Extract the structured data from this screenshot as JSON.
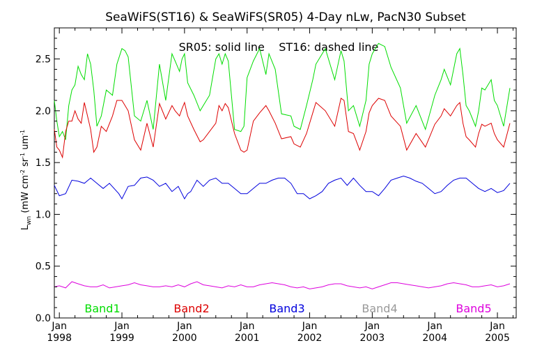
{
  "chart_data": {
    "type": "line",
    "title": "SeaWiFS(ST16) & SeaWiFS(SR05) 4-Day nLw, PacN30 Subset",
    "annotation": "SR05: solid line    ST16: dashed line",
    "ylabel_main": "L",
    "ylabel_sub": "wn",
    "ylabel_units": "(mW cm",
    "ylabel_units_rest": " sr",
    "ylabel_units_end": " um",
    "ylabel_sup": "-2",
    "ylabel_sup2": "-1",
    "ylabel_sup3": "-1",
    "xlim": [
      1997.92,
      2005.3
    ],
    "ylim": [
      0.0,
      2.8
    ],
    "yticks": [
      0.0,
      0.5,
      1.0,
      1.5,
      2.0,
      2.5
    ],
    "ytick_labels": [
      "0.0",
      "0.5",
      "1.0",
      "1.5",
      "2.0",
      "2.5"
    ],
    "xticks": [
      1998.0,
      1999.0,
      2000.0,
      2001.0,
      2002.0,
      2003.0,
      2004.0,
      2005.0
    ],
    "xtick_month": [
      "Jan",
      "Jan",
      "Jan",
      "Jan",
      "Jan",
      "Jan",
      "Jan",
      "Jan"
    ],
    "xtick_year": [
      "1998",
      "1999",
      "2000",
      "2001",
      "2002",
      "2003",
      "2004",
      "2005"
    ],
    "grid": false,
    "legend_placement": "bottom",
    "series": [
      {
        "name": "Band1",
        "color": "#00dd00",
        "x": [
          1997.92,
          1997.96,
          1998.0,
          1998.05,
          1998.1,
          1998.15,
          1998.2,
          1998.25,
          1998.3,
          1998.35,
          1998.4,
          1998.45,
          1998.5,
          1998.55,
          1998.6,
          1998.67,
          1998.75,
          1998.85,
          1998.92,
          1999.0,
          1999.05,
          1999.1,
          1999.2,
          1999.3,
          1999.4,
          1999.5,
          1999.6,
          1999.7,
          1999.8,
          1999.85,
          1999.92,
          1999.96,
          2000.0,
          2000.05,
          2000.15,
          2000.25,
          2000.3,
          2000.4,
          2000.5,
          2000.55,
          2000.6,
          2000.65,
          2000.7,
          2000.8,
          2000.9,
          2000.95,
          2001.0,
          2001.1,
          2001.2,
          2001.3,
          2001.35,
          2001.45,
          2001.55,
          2001.7,
          2001.75,
          2001.85,
          2001.95,
          2002.05,
          2002.1,
          2002.25,
          2002.4,
          2002.5,
          2002.55,
          2002.62,
          2002.7,
          2002.8,
          2002.9,
          2002.95,
          2003.0,
          2003.1,
          2003.2,
          2003.3,
          2003.45,
          2003.55,
          2003.7,
          2003.85,
          2004.0,
          2004.1,
          2004.15,
          2004.25,
          2004.35,
          2004.4,
          2004.45,
          2004.5,
          2004.55,
          2004.65,
          2004.7,
          2004.75,
          2004.8,
          2004.9,
          2004.95,
          2005.0,
          2005.1,
          2005.2
        ],
        "values": [
          2.1,
          1.9,
          1.75,
          1.8,
          1.72,
          2.05,
          2.2,
          2.25,
          2.43,
          2.35,
          2.3,
          2.55,
          2.45,
          2.2,
          1.85,
          1.95,
          2.2,
          2.15,
          2.45,
          2.6,
          2.58,
          2.52,
          1.95,
          1.9,
          2.1,
          1.82,
          2.45,
          2.1,
          2.55,
          2.48,
          2.38,
          2.5,
          2.55,
          2.27,
          2.15,
          2.0,
          2.05,
          2.15,
          2.5,
          2.55,
          2.45,
          2.55,
          2.48,
          1.82,
          1.8,
          1.85,
          2.32,
          2.48,
          2.6,
          2.35,
          2.55,
          2.4,
          1.97,
          1.95,
          1.85,
          1.82,
          2.05,
          2.3,
          2.45,
          2.6,
          2.3,
          2.58,
          2.48,
          2.0,
          2.05,
          1.85,
          2.1,
          2.45,
          2.55,
          2.65,
          2.62,
          2.42,
          2.22,
          1.88,
          2.05,
          1.82,
          2.15,
          2.3,
          2.4,
          2.25,
          2.55,
          2.6,
          2.35,
          2.05,
          2.0,
          1.85,
          2.0,
          2.22,
          2.2,
          2.3,
          2.1,
          2.05,
          1.85,
          2.22
        ],
        "dashed": false
      },
      {
        "name": "Band2",
        "color": "#dd0000",
        "x": [
          1997.92,
          1997.96,
          1998.0,
          1998.05,
          1998.1,
          1998.15,
          1998.2,
          1998.25,
          1998.3,
          1998.35,
          1998.4,
          1998.45,
          1998.5,
          1998.55,
          1998.6,
          1998.67,
          1998.75,
          1998.85,
          1998.92,
          1999.0,
          1999.05,
          1999.1,
          1999.2,
          1999.3,
          1999.4,
          1999.5,
          1999.6,
          1999.7,
          1999.8,
          1999.85,
          1999.92,
          1999.96,
          2000.0,
          2000.05,
          2000.15,
          2000.25,
          2000.3,
          2000.4,
          2000.5,
          2000.55,
          2000.6,
          2000.65,
          2000.7,
          2000.8,
          2000.9,
          2000.95,
          2001.0,
          2001.1,
          2001.2,
          2001.3,
          2001.35,
          2001.45,
          2001.55,
          2001.7,
          2001.75,
          2001.85,
          2001.95,
          2002.05,
          2002.1,
          2002.25,
          2002.4,
          2002.5,
          2002.55,
          2002.62,
          2002.7,
          2002.8,
          2002.9,
          2002.95,
          2003.0,
          2003.1,
          2003.2,
          2003.3,
          2003.45,
          2003.55,
          2003.7,
          2003.85,
          2004.0,
          2004.1,
          2004.15,
          2004.25,
          2004.35,
          2004.4,
          2004.45,
          2004.5,
          2004.55,
          2004.65,
          2004.7,
          2004.75,
          2004.8,
          2004.9,
          2004.95,
          2005.0,
          2005.1,
          2005.2
        ],
        "values": [
          1.82,
          1.65,
          1.62,
          1.55,
          1.8,
          1.9,
          1.9,
          2.0,
          1.92,
          1.88,
          2.08,
          1.95,
          1.82,
          1.6,
          1.65,
          1.85,
          1.8,
          1.95,
          2.1,
          2.1,
          2.05,
          2.0,
          1.72,
          1.62,
          1.88,
          1.65,
          2.07,
          1.92,
          2.05,
          2.0,
          1.95,
          2.02,
          2.08,
          1.95,
          1.82,
          1.7,
          1.72,
          1.8,
          1.88,
          2.05,
          2.0,
          2.07,
          2.03,
          1.78,
          1.62,
          1.6,
          1.62,
          1.9,
          1.98,
          2.05,
          2.0,
          1.88,
          1.73,
          1.75,
          1.68,
          1.65,
          1.78,
          1.98,
          2.08,
          2.0,
          1.85,
          2.12,
          2.1,
          1.8,
          1.78,
          1.62,
          1.8,
          1.98,
          2.05,
          2.12,
          2.1,
          1.95,
          1.85,
          1.62,
          1.78,
          1.65,
          1.87,
          1.95,
          2.02,
          1.95,
          2.05,
          2.08,
          1.88,
          1.75,
          1.72,
          1.65,
          1.78,
          1.87,
          1.85,
          1.88,
          1.78,
          1.72,
          1.65,
          1.88
        ],
        "dashed": false
      },
      {
        "name": "Band3",
        "color": "#0000dd",
        "x": [
          1997.92,
          1998.0,
          1998.1,
          1998.2,
          1998.3,
          1998.4,
          1998.5,
          1998.6,
          1998.7,
          1998.8,
          1998.95,
          1999.0,
          1999.1,
          1999.2,
          1999.3,
          1999.4,
          1999.5,
          1999.6,
          1999.7,
          1999.8,
          1999.9,
          2000.0,
          2000.05,
          2000.1,
          2000.2,
          2000.3,
          2000.4,
          2000.5,
          2000.6,
          2000.7,
          2000.8,
          2000.9,
          2001.0,
          2001.1,
          2001.2,
          2001.3,
          2001.4,
          2001.5,
          2001.6,
          2001.7,
          2001.8,
          2001.9,
          2002.0,
          2002.1,
          2002.2,
          2002.3,
          2002.4,
          2002.5,
          2002.6,
          2002.7,
          2002.8,
          2002.9,
          2003.0,
          2003.1,
          2003.2,
          2003.3,
          2003.4,
          2003.5,
          2003.6,
          2003.7,
          2003.8,
          2003.9,
          2004.0,
          2004.1,
          2004.2,
          2004.3,
          2004.4,
          2004.5,
          2004.6,
          2004.7,
          2004.8,
          2004.9,
          2005.0,
          2005.1,
          2005.2
        ],
        "values": [
          1.28,
          1.18,
          1.2,
          1.33,
          1.32,
          1.3,
          1.35,
          1.3,
          1.25,
          1.3,
          1.2,
          1.15,
          1.27,
          1.28,
          1.35,
          1.36,
          1.33,
          1.27,
          1.3,
          1.22,
          1.27,
          1.15,
          1.2,
          1.22,
          1.33,
          1.27,
          1.33,
          1.35,
          1.3,
          1.3,
          1.25,
          1.2,
          1.2,
          1.25,
          1.3,
          1.3,
          1.33,
          1.35,
          1.35,
          1.3,
          1.2,
          1.2,
          1.15,
          1.18,
          1.22,
          1.3,
          1.33,
          1.35,
          1.28,
          1.35,
          1.28,
          1.22,
          1.22,
          1.18,
          1.25,
          1.33,
          1.35,
          1.37,
          1.35,
          1.32,
          1.3,
          1.25,
          1.2,
          1.22,
          1.28,
          1.33,
          1.35,
          1.35,
          1.3,
          1.25,
          1.22,
          1.25,
          1.21,
          1.23,
          1.3
        ],
        "dashed": false
      },
      {
        "name": "Band4",
        "color": "#999999",
        "x": [],
        "values": [],
        "dashed": true
      },
      {
        "name": "Band5",
        "color": "#dd00dd",
        "x": [
          1997.92,
          1998.0,
          1998.1,
          1998.2,
          1998.3,
          1998.4,
          1998.5,
          1998.6,
          1998.7,
          1998.8,
          1998.9,
          1999.0,
          1999.1,
          1999.2,
          1999.3,
          1999.4,
          1999.5,
          1999.6,
          1999.7,
          1999.8,
          1999.9,
          2000.0,
          2000.1,
          2000.2,
          2000.3,
          2000.4,
          2000.5,
          2000.6,
          2000.7,
          2000.8,
          2000.9,
          2001.0,
          2001.1,
          2001.2,
          2001.3,
          2001.4,
          2001.5,
          2001.6,
          2001.7,
          2001.8,
          2001.9,
          2002.0,
          2002.1,
          2002.2,
          2002.3,
          2002.4,
          2002.5,
          2002.6,
          2002.7,
          2002.8,
          2002.9,
          2003.0,
          2003.1,
          2003.2,
          2003.3,
          2003.4,
          2003.5,
          2003.6,
          2003.7,
          2003.8,
          2003.9,
          2004.0,
          2004.1,
          2004.2,
          2004.3,
          2004.4,
          2004.5,
          2004.6,
          2004.7,
          2004.8,
          2004.9,
          2005.0,
          2005.1,
          2005.2
        ],
        "values": [
          0.3,
          0.31,
          0.29,
          0.35,
          0.33,
          0.31,
          0.3,
          0.3,
          0.32,
          0.29,
          0.3,
          0.31,
          0.32,
          0.34,
          0.32,
          0.31,
          0.3,
          0.3,
          0.31,
          0.3,
          0.32,
          0.3,
          0.33,
          0.35,
          0.32,
          0.31,
          0.3,
          0.29,
          0.31,
          0.3,
          0.32,
          0.3,
          0.3,
          0.32,
          0.33,
          0.34,
          0.33,
          0.32,
          0.3,
          0.29,
          0.3,
          0.28,
          0.29,
          0.3,
          0.32,
          0.33,
          0.33,
          0.31,
          0.3,
          0.29,
          0.3,
          0.28,
          0.3,
          0.32,
          0.34,
          0.34,
          0.33,
          0.32,
          0.31,
          0.3,
          0.29,
          0.3,
          0.31,
          0.33,
          0.34,
          0.33,
          0.32,
          0.3,
          0.3,
          0.31,
          0.32,
          0.3,
          0.31,
          0.33
        ],
        "dashed": false
      }
    ]
  }
}
